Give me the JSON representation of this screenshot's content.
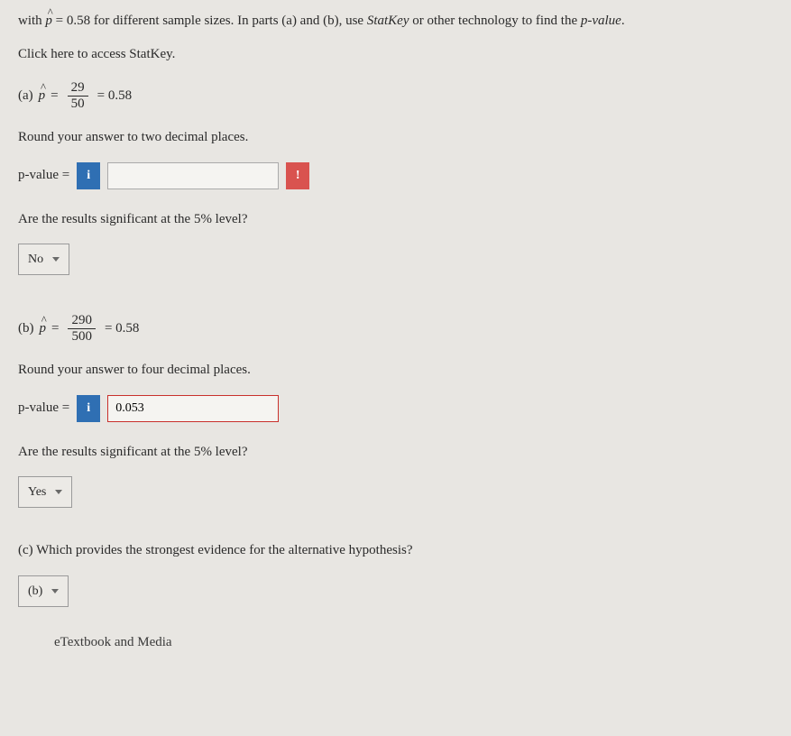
{
  "intro": {
    "prefix": "with ",
    "phat": "p",
    "eq": " = 0.58 for different sample sizes. In parts (a) and (b), use ",
    "statkey": "StatKey",
    "suffix": " or other technology to find the ",
    "pval": "p-value",
    "end": "."
  },
  "access_line": "Click here to access StatKey.",
  "partA": {
    "label": "(a) ",
    "num": "29",
    "den": "50",
    "result": " = 0.58",
    "round": "Round your answer to two decimal places.",
    "pv_label": "p-value =",
    "pv_value": "",
    "sig_q": "Are the results significant at the 5% level?",
    "sig_sel": "No"
  },
  "partB": {
    "label": "(b) ",
    "num": "290",
    "den": "500",
    "result": " = 0.58",
    "round": "Round your answer to four decimal places.",
    "pv_label": "p-value =",
    "pv_value": "0.053",
    "sig_q": "Are the results significant at the 5% level?",
    "sig_sel": "Yes"
  },
  "partC": {
    "question": "(c) Which provides the strongest evidence for the alternative hypothesis?",
    "sel": "(b)"
  },
  "etext": "eTextbook and Media",
  "icons": {
    "info": "i",
    "error": "!"
  },
  "colors": {
    "info_bg": "#2f6fb3",
    "error_bg": "#d9534f",
    "page_bg": "#e8e6e2",
    "border": "#9a9a9a"
  }
}
